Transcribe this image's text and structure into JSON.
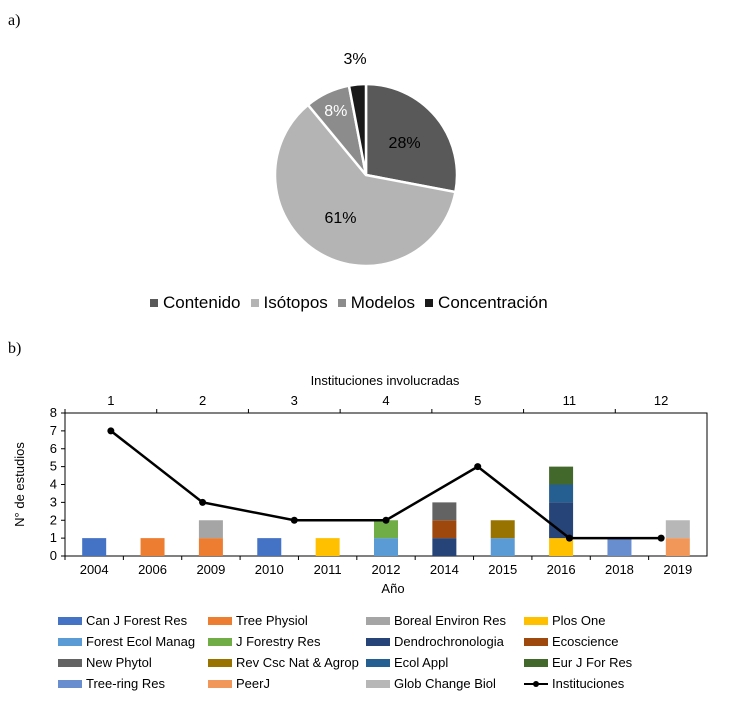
{
  "panel_a_label": "a)",
  "panel_b_label": "b)",
  "chart_data": [
    {
      "type": "pie",
      "labels": [
        "Contenido",
        "Isótopos",
        "Modelos",
        "Concentración"
      ],
      "values": [
        28,
        61,
        8,
        3
      ],
      "value_labels": [
        "28%",
        "61%",
        "8%",
        "3%"
      ],
      "colors": [
        "#595959",
        "#b4b4b4",
        "#8c8c8c",
        "#1a1a1a"
      ],
      "legend_position": "bottom"
    },
    {
      "type": "bar",
      "stacked": true,
      "categories": [
        "2004",
        "2006",
        "2009",
        "2010",
        "2011",
        "2012",
        "2014",
        "2015",
        "2016",
        "2018",
        "2019"
      ],
      "xlabel": "Año",
      "ylabel": "N° de estudios",
      "ylim": [
        0,
        8
      ],
      "yticks": [
        "0",
        "1",
        "2",
        "3",
        "4",
        "5",
        "6",
        "7",
        "8"
      ],
      "top_axis_label": "Instituciones involucradas",
      "top_ticks": [
        "1",
        "2",
        "3",
        "4",
        "5",
        "11",
        "12"
      ],
      "series": [
        {
          "name": "Can J Forest Res",
          "color": "#4472c4",
          "values": [
            1,
            0,
            0,
            1,
            0,
            0,
            0,
            0,
            0,
            0,
            0
          ]
        },
        {
          "name": "Tree Physiol",
          "color": "#ed7d31",
          "values": [
            0,
            1,
            1,
            0,
            0,
            0,
            0,
            0,
            0,
            0,
            0
          ]
        },
        {
          "name": "Boreal Environ Res",
          "color": "#a5a5a5",
          "values": [
            0,
            0,
            1,
            0,
            0,
            0,
            0,
            0,
            0,
            0,
            0
          ]
        },
        {
          "name": "Plos One",
          "color": "#ffc000",
          "values": [
            0,
            0,
            0,
            0,
            1,
            0,
            0,
            0,
            1,
            0,
            0
          ]
        },
        {
          "name": "Forest Ecol Manag",
          "color": "#5b9bd5",
          "values": [
            0,
            0,
            0,
            0,
            0,
            1,
            0,
            1,
            0,
            0,
            0
          ]
        },
        {
          "name": "J Forestry Res",
          "color": "#70ad47",
          "values": [
            0,
            0,
            0,
            0,
            0,
            1,
            0,
            0,
            0,
            0,
            0
          ]
        },
        {
          "name": "Dendrochronologia",
          "color": "#264478",
          "values": [
            0,
            0,
            0,
            0,
            0,
            0,
            1,
            0,
            2,
            0,
            0
          ]
        },
        {
          "name": "Ecoscience",
          "color": "#9e480e",
          "values": [
            0,
            0,
            0,
            0,
            0,
            0,
            1,
            0,
            0,
            0,
            0
          ]
        },
        {
          "name": "New Phytol",
          "color": "#636363",
          "values": [
            0,
            0,
            0,
            0,
            0,
            0,
            1,
            0,
            0,
            0,
            0
          ]
        },
        {
          "name": "Rev Csc Nat & Agrop",
          "color": "#997300",
          "values": [
            0,
            0,
            0,
            0,
            0,
            0,
            0,
            1,
            0,
            0,
            0
          ]
        },
        {
          "name": "Ecol Appl",
          "color": "#255e91",
          "values": [
            0,
            0,
            0,
            0,
            0,
            0,
            0,
            0,
            1,
            0,
            0
          ]
        },
        {
          "name": "Eur J For Res",
          "color": "#43682b",
          "values": [
            0,
            0,
            0,
            0,
            0,
            0,
            0,
            0,
            1,
            0,
            0
          ]
        },
        {
          "name": "Tree-ring Res",
          "color": "#698ed0",
          "values": [
            0,
            0,
            0,
            0,
            0,
            0,
            0,
            0,
            0,
            1,
            0
          ]
        },
        {
          "name": "PeerJ",
          "color": "#f1975a",
          "values": [
            0,
            0,
            0,
            0,
            0,
            0,
            0,
            0,
            0,
            0,
            1
          ]
        },
        {
          "name": "Glob Change Biol",
          "color": "#b7b7b7",
          "values": [
            0,
            0,
            0,
            0,
            0,
            0,
            0,
            0,
            0,
            0,
            1
          ]
        }
      ],
      "line_series": {
        "name": "Instituciones",
        "color": "#000000",
        "x_top_index": [
          0,
          1,
          2,
          3,
          4,
          5,
          6
        ],
        "values": [
          7,
          3,
          2,
          2,
          5,
          1,
          1
        ]
      }
    }
  ]
}
